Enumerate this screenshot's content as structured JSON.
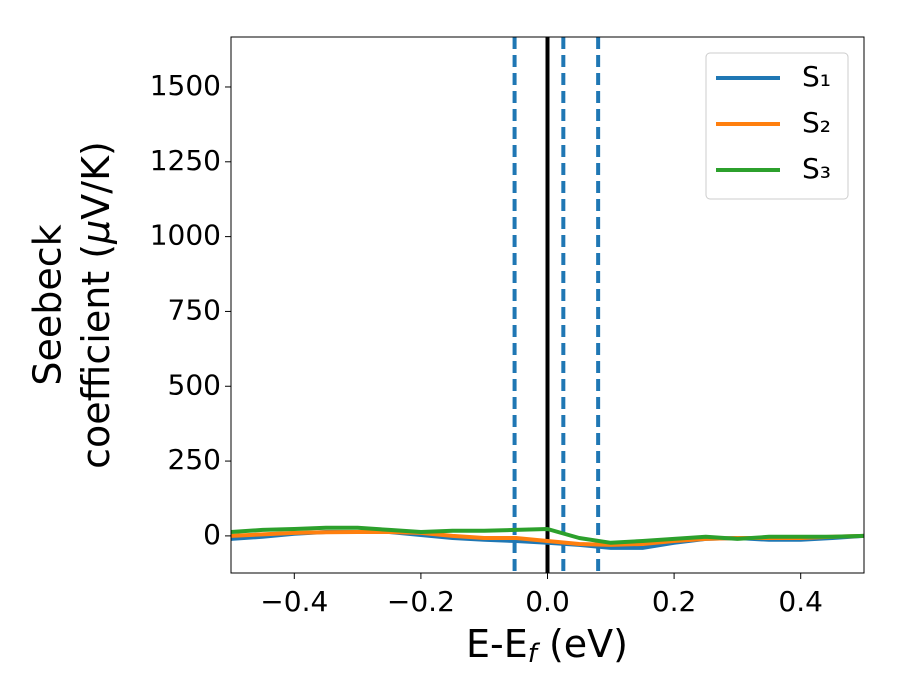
{
  "chart_data": {
    "type": "line",
    "xlabel_parts": [
      "E-E",
      "f",
      " (eV)"
    ],
    "ylabel_lines": [
      "Seebeck",
      "coefficient  (",
      "μ",
      "V/K)"
    ],
    "x": [
      -0.5,
      -0.45,
      -0.4,
      -0.35,
      -0.3,
      -0.25,
      -0.2,
      -0.15,
      -0.1,
      -0.05,
      0,
      0.05,
      0.1,
      0.15,
      0.2,
      0.25,
      0.3,
      0.35,
      0.4,
      0.45,
      0.5
    ],
    "series": [
      {
        "name": "S₁",
        "color": "#1f77b4",
        "values": [
          -10,
          -3,
          7,
          13,
          13,
          13,
          3,
          -7,
          -13,
          -17,
          -23,
          -30,
          -40,
          -40,
          -23,
          -10,
          -7,
          -13,
          -13,
          -7,
          0
        ]
      },
      {
        "name": "S₂",
        "color": "#ff7f0e",
        "values": [
          0,
          5,
          10,
          12,
          13,
          13,
          10,
          0,
          -7,
          -7,
          -17,
          -27,
          -30,
          -27,
          -17,
          -10,
          -7,
          -7,
          -7,
          -3,
          0
        ]
      },
      {
        "name": "S₃",
        "color": "#2ca02c",
        "values": [
          13,
          20,
          23,
          27,
          27,
          20,
          13,
          17,
          17,
          20,
          23,
          -7,
          -23,
          -17,
          -10,
          -3,
          -10,
          -3,
          -3,
          -3,
          0
        ]
      }
    ],
    "vlines": [
      {
        "x": 0,
        "color": "#000000",
        "style": "solid"
      },
      {
        "x": -0.052,
        "color": "#1f77b4",
        "style": "dashed"
      },
      {
        "x": 0.025,
        "color": "#1f77b4",
        "style": "dashed"
      },
      {
        "x": 0.08,
        "color": "#1f77b4",
        "style": "dashed"
      }
    ],
    "xlim": [
      -0.5,
      0.5
    ],
    "ylim": [
      -124,
      1667
    ],
    "xticks": [
      {
        "value": -0.4,
        "label": "−0.4"
      },
      {
        "value": -0.2,
        "label": "−0.2"
      },
      {
        "value": 0,
        "label": "0.0"
      },
      0.2,
      0.4
    ],
    "yticks": [
      0,
      250,
      500,
      750,
      1000,
      1250,
      1500
    ],
    "legend": "upper-right",
    "grid": false
  }
}
